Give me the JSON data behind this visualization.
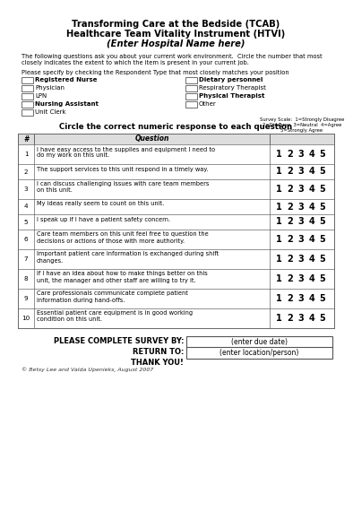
{
  "title1": "Transforming Care at the Bedside (TCAB)",
  "title2": "Healthcare Team Vitality Instrument (HTVI)",
  "title3": "(Enter Hospital Name here)",
  "intro_text": "The following questions ask you about your current work environment.  Circle the number that most\nclosely indicates the extent to which the item is present in your current job.",
  "respondent_label": "Please specify by checking the Respondent Type that most closely matches your position",
  "left_roles": [
    "Registered Nurse",
    "Physician",
    "LPN",
    "Nursing Assistant",
    "Unit Clerk"
  ],
  "right_roles": [
    "Dietary personnel",
    "Respiratory Therapist",
    "Physical Therapist",
    "Other"
  ],
  "circle_instruction": "Circle the correct numeric response to each question",
  "col_header_num": "#",
  "col_header_q": "Question",
  "scale_label": "Survey Scale:  1=Strongly Disagree\n2=Disagree  3=Neutral  4=Agree\n5=Strongly Agree",
  "questions": [
    "I have easy access to the supplies and equipment I need to\ndo my work on this unit.",
    "The support services to this unit respond in a timely way.",
    "I can discuss challenging issues with care team members\non this unit.",
    "My ideas really seem to count on this unit.",
    "I speak up if I have a patient safety concern.",
    "Care team members on this unit feel free to question the\ndecisions or actions of those with more authority.",
    "Important patient care information is exchanged during shift\nchanges.",
    "If I have an idea about how to make things better on this\nunit, the manager and other staff are willing to try it.",
    "Care professionals communicate complete patient\ninformation during hand-offs.",
    "Essential patient care equipment is in good working\ncondition on this unit."
  ],
  "complete_label": "PLEASE COMPLETE SURVEY BY:",
  "return_label": "RETURN TO:",
  "thankyou_label": "THANK YOU!",
  "due_date_box": "(enter due date)",
  "location_box": "(enter location/person)",
  "copyright": "© Betsy Lee and Valda Upenieks, August 2007",
  "bg_color": "#ffffff",
  "border_color": "#888888",
  "table_border": "#666666"
}
